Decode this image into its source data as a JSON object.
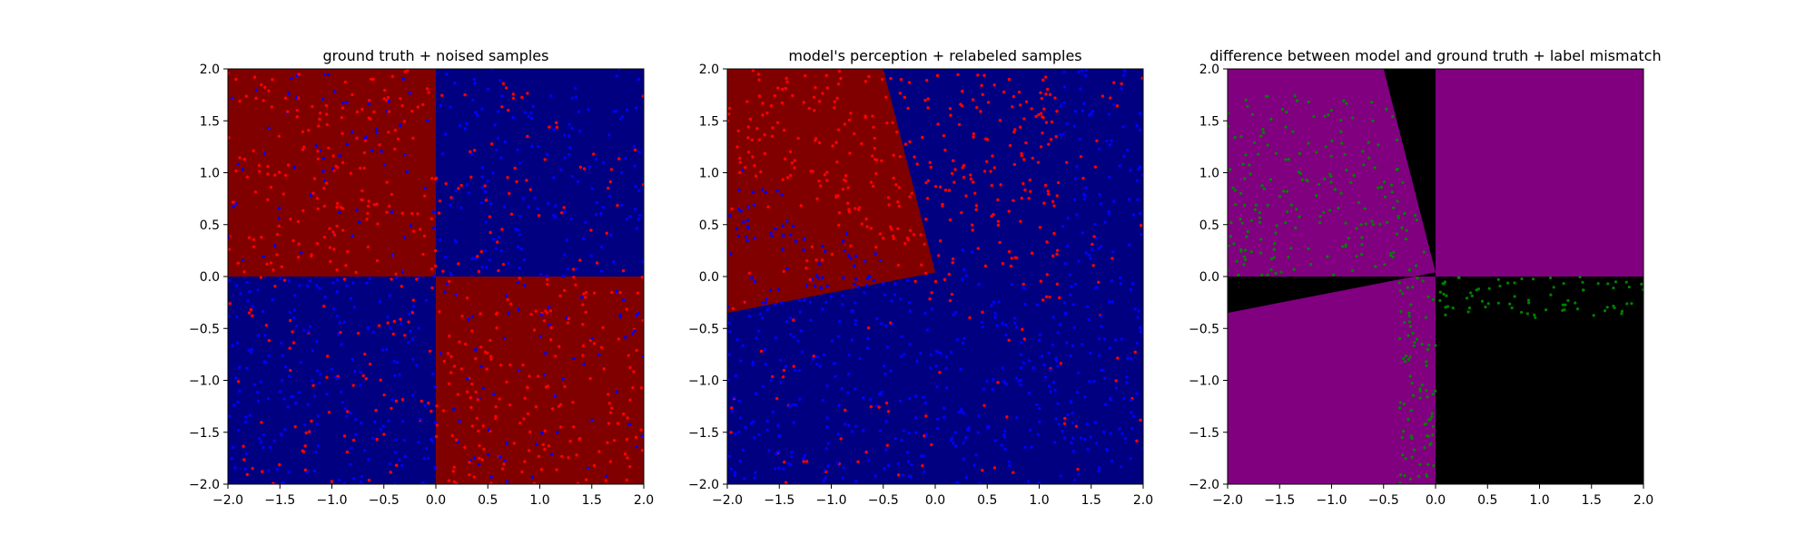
{
  "colors": {
    "red": "#800000",
    "blue": "#000080",
    "purple": "#800080",
    "black": "#000000",
    "point_red": "#ff0000",
    "point_blue": "#0000ff",
    "point_green": "#008000"
  },
  "chart_data": [
    {
      "type": "scatter",
      "title": "ground truth + noised samples",
      "xlim": [
        -2.0,
        2.0
      ],
      "ylim": [
        -2.0,
        2.0
      ],
      "xticks": [
        "−2.0",
        "−1.5",
        "−1.0",
        "−0.5",
        "0.0",
        "0.5",
        "1.0",
        "1.5",
        "2.0"
      ],
      "yticks": [
        "−2.0",
        "−1.5",
        "−1.0",
        "−0.5",
        "0.0",
        "0.5",
        "1.0",
        "1.5",
        "2.0"
      ],
      "background": "XOR quadrants: class red in x<0,y>0 and x>0,y<0; class blue elsewhere",
      "samples": "≈1000 points uniformly in [-2,2]², colored by label with ~30% label noise",
      "series": [
        {
          "color": "red"
        },
        {
          "color": "blue"
        }
      ]
    },
    {
      "type": "scatter",
      "title": "model's perception + relabeled samples",
      "xlim": [
        -2.0,
        2.0
      ],
      "ylim": [
        -2.0,
        2.0
      ],
      "xticks": [
        "−2.0",
        "−1.5",
        "−1.0",
        "−0.5",
        "0.0",
        "0.5",
        "1.0",
        "1.5",
        "2.0"
      ],
      "yticks": [
        "−2.0",
        "−1.5",
        "−1.0",
        "−0.5",
        "0.0",
        "0.5",
        "1.0",
        "1.5",
        "2.0"
      ],
      "background": "model red wedge from origin (≈0,0.04) between boundary rays through (-0.5,2.0) and (-2.0,-0.35); blue elsewhere",
      "samples": "≈1000 points, relabeled: red above line y≈0.6−0.8x region (upper-left half), blue lower-right half",
      "series": [
        {
          "color": "red"
        },
        {
          "color": "blue"
        }
      ]
    },
    {
      "type": "scatter",
      "title": "difference between model and ground truth + label mismatch",
      "xlim": [
        -2.0,
        2.0
      ],
      "ylim": [
        -2.0,
        2.0
      ],
      "xticks": [
        "−2.0",
        "−1.5",
        "−1.0",
        "−0.5",
        "0.0",
        "0.5",
        "1.0",
        "1.5",
        "2.0"
      ],
      "yticks": [
        "−2.0",
        "−1.5",
        "−1.0",
        "−0.5",
        "0.0",
        "0.5",
        "1.0",
        "1.5",
        "2.0"
      ],
      "background": "purple where model agrees with ground truth, black where it differs (wedges near axes and lower-right quadrant)",
      "samples": "≈250 green points where labels mismatch",
      "series": [
        {
          "color": "green"
        }
      ]
    }
  ]
}
